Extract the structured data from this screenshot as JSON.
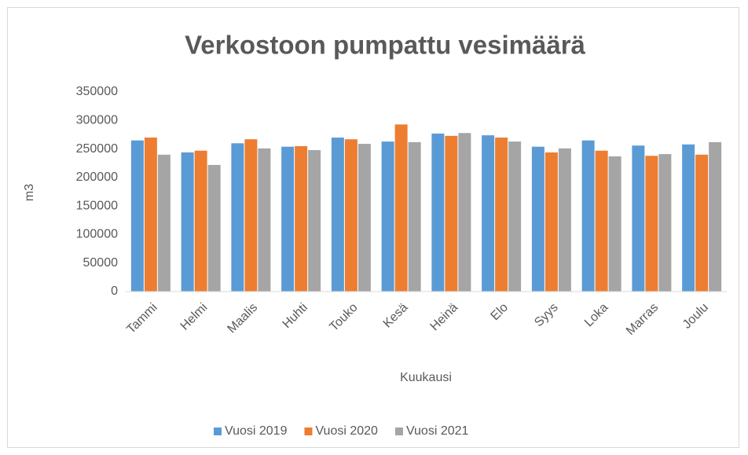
{
  "chart_data": {
    "type": "bar",
    "title": "Verkostoon pumpattu vesimäärä",
    "x_label": "Kuukausi",
    "y_label": "m3",
    "categories": [
      "Tammi",
      "Helmi",
      "Maalis",
      "Huhti",
      "Touko",
      "Kesä",
      "Heinä",
      "Elo",
      "Syys",
      "Loka",
      "Marras",
      "Joulu"
    ],
    "series": [
      {
        "name": "Vuosi 2019",
        "color": "#5b9bd5",
        "values": [
          265000,
          244000,
          260000,
          254000,
          270000,
          263000,
          277000,
          274000,
          254000,
          265000,
          256000,
          258000
        ]
      },
      {
        "name": "Vuosi 2020",
        "color": "#ed7d31",
        "values": [
          270000,
          247000,
          267000,
          255000,
          267000,
          293000,
          273000,
          270000,
          244000,
          247000,
          238000,
          240000
        ]
      },
      {
        "name": "Vuosi 2021",
        "color": "#a5a5a5",
        "values": [
          240000,
          222000,
          251000,
          248000,
          259000,
          262000,
          278000,
          263000,
          251000,
          237000,
          241000,
          262000
        ]
      }
    ],
    "ylim": [
      0,
      350000
    ],
    "yticks": [
      0,
      50000,
      100000,
      150000,
      200000,
      250000,
      300000,
      350000
    ],
    "grid": false,
    "legend": "bottom"
  }
}
